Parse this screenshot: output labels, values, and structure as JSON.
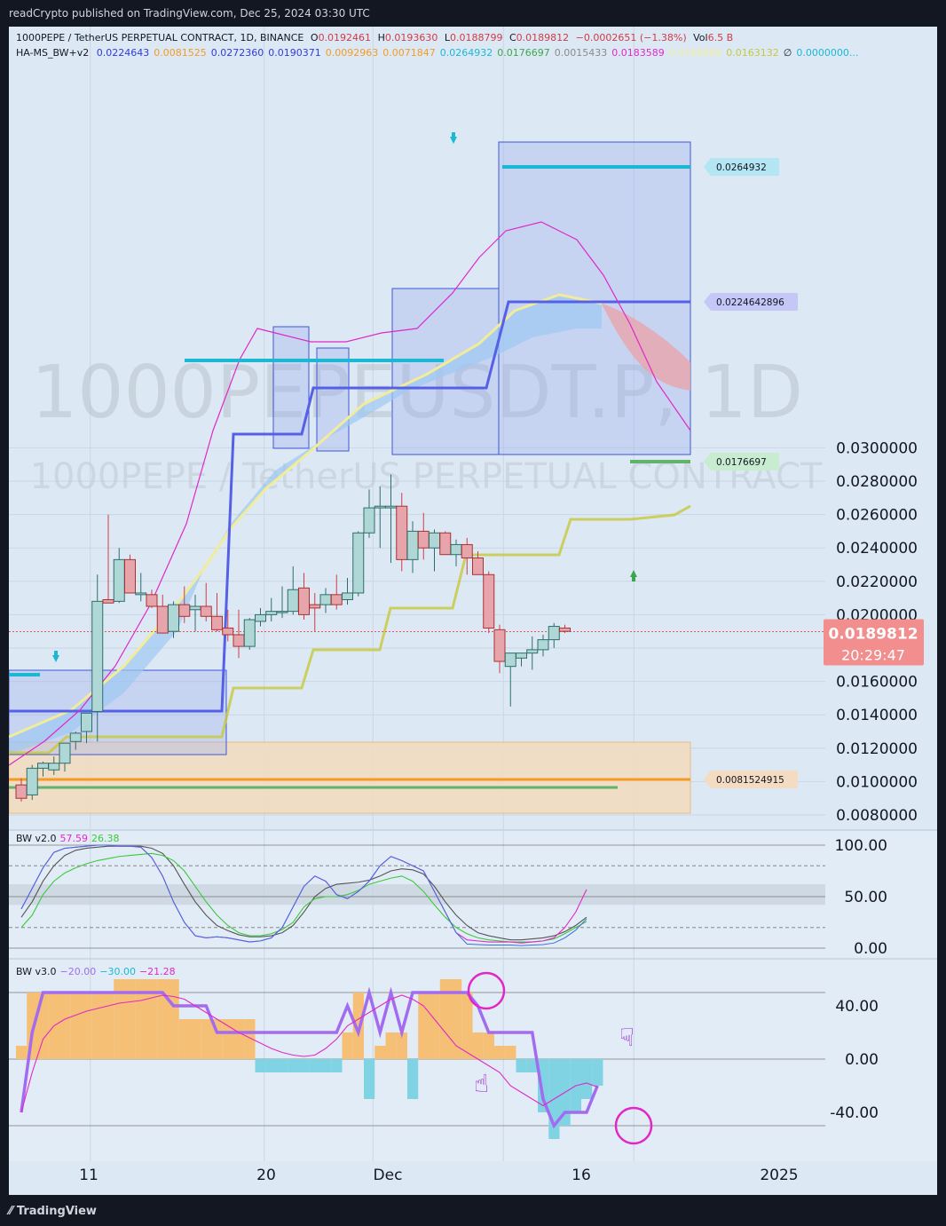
{
  "header": {
    "published": "readCrypto published on TradingView.com, Dec 25, 2024 03:30 UTC"
  },
  "legend": {
    "symbol": "1000PEPE / TetherUS PERPETUAL CONTRACT, 1D, BINANCE",
    "o_label": "O",
    "o_value": "0.0192461",
    "h_label": "H",
    "h_value": "0.0193630",
    "l_label": "L",
    "l_value": "0.0188799",
    "c_label": "C",
    "c_value": "0.0189812",
    "change": "−0.0002651 (−1.38%)",
    "vol_label": "Vol",
    "vol_value": "6.5 B",
    "indicator_name": "HA-MS_BW+v2",
    "indicator_values": [
      {
        "v": "0.0224643",
        "color": "#2f3be0"
      },
      {
        "v": "0.0081525",
        "color": "#f59a23"
      },
      {
        "v": "0.0272360",
        "color": "#2f3be0"
      },
      {
        "v": "0.0190371",
        "color": "#2f3be0"
      },
      {
        "v": "0.0092963",
        "color": "#f59a23"
      },
      {
        "v": "0.0071847",
        "color": "#f59a23"
      },
      {
        "v": "0.0264932",
        "color": "#1bb8d6"
      },
      {
        "v": "0.0176697",
        "color": "#3aa84a"
      },
      {
        "v": "0.0015433",
        "color": "#8a8a8a"
      },
      {
        "v": "0.0183589",
        "color": "#e028c8"
      },
      {
        "v": "0.0198668",
        "color": "#f1ec9a"
      },
      {
        "v": "0.0163132",
        "color": "#c8c83a"
      },
      {
        "v": "∅",
        "color": "#131722"
      },
      {
        "v": "0.0000000...",
        "color": "#1bb8d6"
      }
    ]
  },
  "watermark": {
    "line1": "1000PEPEUSDT.P, 1D",
    "line2": "1000PEPE / TetherUS PERPETUAL CONTRACT"
  },
  "price_axis": {
    "ticks": [
      "0.0300000",
      "0.0280000",
      "0.0260000",
      "0.0240000",
      "0.0220000",
      "0.0200000",
      "0.0180000",
      "0.0160000",
      "0.0140000",
      "0.0120000",
      "0.0100000",
      "0.0080000"
    ],
    "current_price": "0.0189812",
    "countdown": "20:29:47"
  },
  "level_labels": [
    {
      "text": "0.0264932",
      "color": "#b3e5f2"
    },
    {
      "text": "0.0224642896",
      "color": "#c5c8f7"
    },
    {
      "text": "0.0176697",
      "color": "#c8ecd0"
    },
    {
      "text": "0.0081524915",
      "color": "#f3dcc2"
    }
  ],
  "pane1": {
    "title": "BW v2.0",
    "v1": "57.59",
    "v2": "26.38",
    "colors": {
      "v1": "#e028c8",
      "v2": "#3cc83c"
    },
    "axis": [
      "100.00",
      "50.00",
      "0.00"
    ]
  },
  "pane2": {
    "title": "BW v3.0",
    "v1": "−20.00",
    "v2": "−30.00",
    "v3": "−21.28",
    "colors": {
      "v1": "#a36cf0",
      "v2": "#1bb8d6",
      "v3": "#e028c8"
    },
    "axis": [
      "40.00",
      "0.00",
      "-40.00"
    ]
  },
  "time_axis": [
    "11",
    "20",
    "Dec",
    "16",
    "2025"
  ],
  "footer": {
    "brand": "TradingView"
  },
  "chart_data": [
    {
      "type": "candlestick",
      "title": "1000PEPE / TetherUS PERPETUAL CONTRACT, 1D, BINANCE",
      "ylim": [
        0.0072,
        0.0316
      ],
      "colors": {
        "up": "#aed7d6",
        "down": "#e8a4ab",
        "up_border": "#2e6e6a",
        "down_border": "#a83232",
        "wick_up": "#2e6e6a",
        "wick_down": "#d03c46"
      },
      "candles": [
        [
          0.0098,
          0.0102,
          0.0088,
          0.009
        ],
        [
          0.0092,
          0.011,
          0.0089,
          0.0108
        ],
        [
          0.0108,
          0.0112,
          0.0103,
          0.0111
        ],
        [
          0.0107,
          0.0115,
          0.0104,
          0.0111
        ],
        [
          0.0111,
          0.0123,
          0.0106,
          0.0123
        ],
        [
          0.0124,
          0.013,
          0.0119,
          0.0129
        ],
        [
          0.013,
          0.014,
          0.0123,
          0.0141
        ],
        [
          0.0142,
          0.0224,
          0.0124,
          0.0208
        ],
        [
          0.0209,
          0.026,
          0.0207,
          0.0207
        ],
        [
          0.0208,
          0.024,
          0.0207,
          0.0233
        ],
        [
          0.0233,
          0.0236,
          0.0214,
          0.0213
        ],
        [
          0.0212,
          0.0225,
          0.0208,
          0.0213
        ],
        [
          0.0212,
          0.0215,
          0.0204,
          0.0205
        ],
        [
          0.0205,
          0.0212,
          0.0189,
          0.0189
        ],
        [
          0.019,
          0.0208,
          0.0186,
          0.0206
        ],
        [
          0.0206,
          0.0217,
          0.0195,
          0.0199
        ],
        [
          0.0203,
          0.0212,
          0.019,
          0.0205
        ],
        [
          0.0205,
          0.0219,
          0.0196,
          0.0199
        ],
        [
          0.0199,
          0.0213,
          0.019,
          0.0191
        ],
        [
          0.0192,
          0.0203,
          0.0184,
          0.0188
        ],
        [
          0.0188,
          0.0203,
          0.0174,
          0.0181
        ],
        [
          0.0181,
          0.0198,
          0.0179,
          0.0197
        ],
        [
          0.0196,
          0.0204,
          0.0193,
          0.02
        ],
        [
          0.02,
          0.021,
          0.0196,
          0.0202
        ],
        [
          0.0202,
          0.0217,
          0.0198,
          0.0202
        ],
        [
          0.0202,
          0.0229,
          0.02,
          0.0215
        ],
        [
          0.0216,
          0.0225,
          0.0197,
          0.02
        ],
        [
          0.0206,
          0.0213,
          0.019,
          0.0204
        ],
        [
          0.0206,
          0.0216,
          0.0201,
          0.0212
        ],
        [
          0.0212,
          0.0224,
          0.0203,
          0.0206
        ],
        [
          0.0209,
          0.0222,
          0.0206,
          0.0213
        ],
        [
          0.0213,
          0.025,
          0.0211,
          0.0249
        ],
        [
          0.0249,
          0.0275,
          0.0246,
          0.0264
        ],
        [
          0.0264,
          0.0277,
          0.024,
          0.0265
        ],
        [
          0.0264,
          0.0284,
          0.0231,
          0.0265
        ],
        [
          0.0265,
          0.0273,
          0.0226,
          0.0233
        ],
        [
          0.0233,
          0.0256,
          0.0225,
          0.025
        ],
        [
          0.025,
          0.0261,
          0.0233,
          0.024
        ],
        [
          0.024,
          0.0251,
          0.0226,
          0.0249
        ],
        [
          0.0249,
          0.025,
          0.0237,
          0.0236
        ],
        [
          0.0236,
          0.0245,
          0.0229,
          0.0242
        ],
        [
          0.0242,
          0.0246,
          0.0224,
          0.0234
        ],
        [
          0.0234,
          0.0238,
          0.0225,
          0.0224
        ],
        [
          0.0224,
          0.0226,
          0.0189,
          0.0192
        ],
        [
          0.0191,
          0.0194,
          0.0165,
          0.0172
        ],
        [
          0.0169,
          0.0176,
          0.0145,
          0.0177
        ],
        [
          0.0174,
          0.0177,
          0.0169,
          0.0177
        ],
        [
          0.0177,
          0.0187,
          0.0167,
          0.0179
        ],
        [
          0.0179,
          0.0188,
          0.0175,
          0.0185
        ],
        [
          0.0185,
          0.0195,
          0.018,
          0.0193
        ],
        [
          0.0192,
          0.0194,
          0.0189,
          0.019
        ]
      ]
    },
    {
      "type": "line",
      "title": "BW v2.0",
      "ylim": [
        0,
        100
      ],
      "series": [
        {
          "name": "BW v2.0 57.59",
          "color": "#e028c8",
          "values": [
            38,
            58,
            78,
            93,
            97,
            98,
            99,
            100,
            100,
            99,
            99,
            98,
            88,
            70,
            45,
            25,
            12,
            10,
            11,
            10,
            8,
            6,
            7,
            10,
            20,
            40,
            60,
            70,
            65,
            52,
            48,
            55,
            65,
            80,
            89,
            85,
            80,
            75,
            55,
            35,
            15,
            8,
            7,
            6,
            6,
            6,
            5,
            6,
            7,
            10,
            20,
            35,
            57
          ]
        },
        {
          "name": "26.38",
          "color": "#3cc83c",
          "values": [
            20,
            32,
            52,
            65,
            73,
            78,
            82,
            85,
            87,
            89,
            90,
            91,
            92,
            90,
            85,
            75,
            60,
            45,
            32,
            22,
            15,
            12,
            12,
            14,
            18,
            25,
            40,
            48,
            50,
            50,
            52,
            56,
            62,
            65,
            68,
            70,
            65,
            55,
            42,
            30,
            20,
            14,
            10,
            8,
            7,
            6,
            6,
            6,
            7,
            9,
            14,
            20,
            26
          ]
        },
        {
          "name": "",
          "color": "#555555",
          "values": [
            30,
            45,
            65,
            80,
            90,
            95,
            97,
            98,
            99,
            99,
            99,
            99,
            97,
            92,
            80,
            62,
            45,
            32,
            22,
            17,
            13,
            11,
            11,
            12,
            15,
            22,
            35,
            50,
            58,
            62,
            63,
            64,
            66,
            70,
            75,
            77,
            76,
            72,
            60,
            45,
            32,
            22,
            15,
            12,
            10,
            8,
            8,
            9,
            10,
            12,
            16,
            22,
            30
          ]
        }
      ]
    },
    {
      "type": "bar",
      "title": "BW v3.0",
      "ylim": [
        -60,
        60
      ],
      "values": [
        10,
        50,
        50,
        50,
        50,
        50,
        50,
        50,
        50,
        60,
        60,
        60,
        60,
        60,
        60,
        30,
        30,
        30,
        30,
        30,
        30,
        30,
        -10,
        -10,
        -10,
        -10,
        -10,
        -10,
        -10,
        -10,
        20,
        50,
        -30,
        10,
        20,
        20,
        -30,
        50,
        50,
        60,
        60,
        50,
        20,
        20,
        10,
        10,
        -10,
        -10,
        -40,
        -60,
        -50,
        -40,
        -30,
        -20
      ],
      "line_series": [
        {
          "name": "−20.00",
          "color": "#a36cf0",
          "values": [
            -40,
            20,
            50,
            50,
            50,
            50,
            50,
            50,
            50,
            50,
            50,
            50,
            50,
            50,
            40,
            40,
            40,
            40,
            20,
            20,
            20,
            20,
            20,
            20,
            20,
            20,
            20,
            20,
            20,
            20,
            40,
            20,
            50,
            20,
            50,
            20,
            50,
            50,
            50,
            50,
            50,
            50,
            40,
            20,
            20,
            20,
            20,
            20,
            -30,
            -50,
            -40,
            -40,
            -40,
            -20
          ]
        },
        {
          "name": "−21.28",
          "color": "#e028c8",
          "values": [
            -40,
            -10,
            15,
            25,
            30,
            33,
            36,
            38,
            40,
            42,
            43,
            44,
            46,
            48,
            47,
            45,
            40,
            35,
            30,
            25,
            20,
            16,
            12,
            8,
            5,
            3,
            2,
            3,
            8,
            15,
            25,
            30,
            35,
            40,
            45,
            48,
            45,
            40,
            30,
            20,
            10,
            5,
            0,
            -5,
            -10,
            -20,
            -25,
            -30,
            -35,
            -30,
            -25,
            -20,
            -18,
            -21
          ]
        }
      ]
    }
  ]
}
